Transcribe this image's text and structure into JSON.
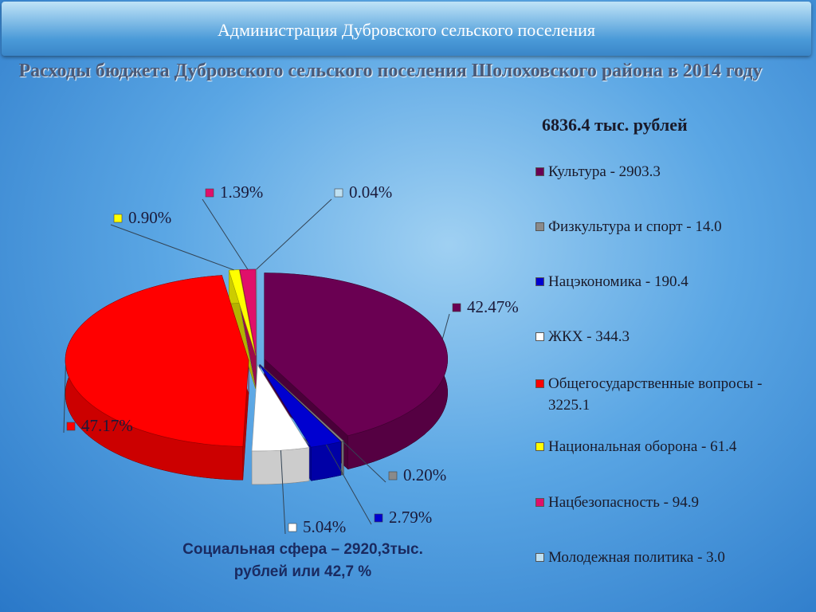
{
  "header": "Администрация Дубровского сельского поселения",
  "chart_data": {
    "type": "pie",
    "title": "Расходы бюджета Дубровского сельского поселения Шолоховского района в 2014 году",
    "subtitle": "6836.4 тыс. рублей",
    "annotation": "Социальная сфера – 2920,3тыс. рублей или 42,7 %",
    "categories": [
      "Культура - 2903.3",
      "Физкультура и спорт - 14.0",
      "Нацэкономика - 190.4",
      "ЖКХ - 344.3",
      "Общегосударственные вопросы - 3225.1",
      "Национальная оборона - 61.4",
      "Нацбезопасность  - 94.9",
      "Молодежная политика - 3.0"
    ],
    "values": [
      42.47,
      0.2,
      2.79,
      5.04,
      47.17,
      0.9,
      1.39,
      0.04
    ],
    "value_labels": [
      "42.47%",
      "0.20%",
      "2.79%",
      "5.04%",
      "47.17%",
      "0.90%",
      "1.39%",
      "0.04%"
    ],
    "colors": [
      "#6a0052",
      "#8a8a8a",
      "#0000d0",
      "#ffffff",
      "#ff0000",
      "#ffff00",
      "#e0106a",
      "#bfe0f2"
    ]
  }
}
